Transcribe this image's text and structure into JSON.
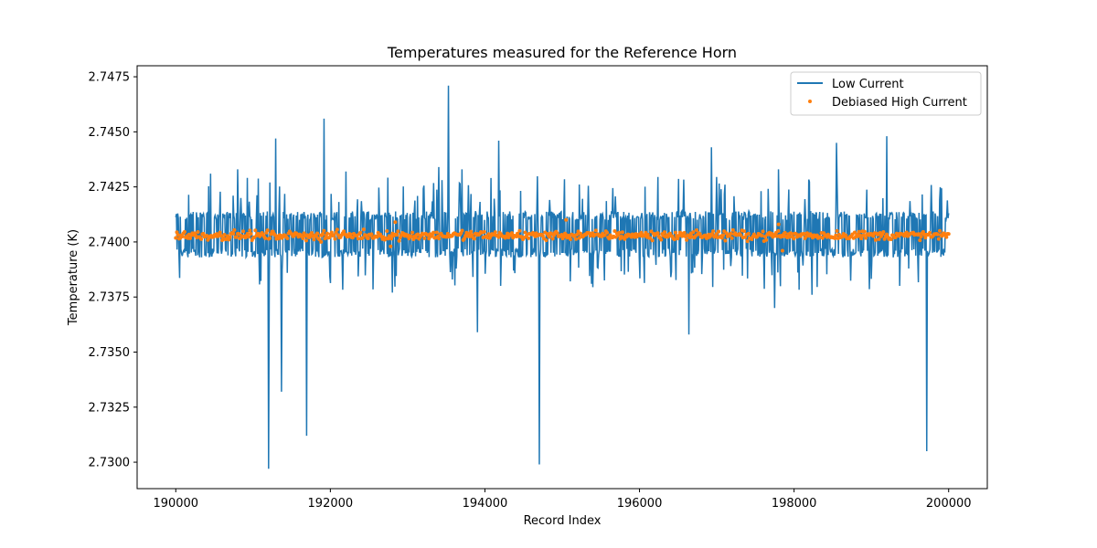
{
  "chart_data": {
    "type": "line",
    "title": "Temperatures measured for the Reference Horn",
    "xlabel": "Record Index",
    "ylabel": "Temperature (K)",
    "xlim": [
      189500,
      200500
    ],
    "ylim": [
      2.7288,
      2.748
    ],
    "xticks": [
      190000,
      192000,
      194000,
      196000,
      198000,
      200000
    ],
    "xtick_labels": [
      "190000",
      "192000",
      "194000",
      "196000",
      "198000",
      "200000"
    ],
    "yticks": [
      2.73,
      2.7325,
      2.735,
      2.7375,
      2.74,
      2.7425,
      2.745,
      2.7475
    ],
    "ytick_labels": [
      "2.7300",
      "2.7325",
      "2.7350",
      "2.7375",
      "2.7400",
      "2.7425",
      "2.7450",
      "2.7475"
    ],
    "grid": false,
    "legend_position": "upper-right",
    "series": [
      {
        "name": "Low Current",
        "kind": "line",
        "color": "#1f77b4",
        "x_range": [
          190000,
          200000
        ],
        "n_points": 1200,
        "band_low": 2.7395,
        "band_high": 2.7412,
        "spikes": [
          {
            "x": 191200,
            "y": 2.7297
          },
          {
            "x": 191290,
            "y": 2.7447
          },
          {
            "x": 191370,
            "y": 2.7332
          },
          {
            "x": 191690,
            "y": 2.7312
          },
          {
            "x": 191920,
            "y": 2.7456
          },
          {
            "x": 193530,
            "y": 2.7471
          },
          {
            "x": 193900,
            "y": 2.7359
          },
          {
            "x": 194180,
            "y": 2.7446
          },
          {
            "x": 194700,
            "y": 2.7299
          },
          {
            "x": 196640,
            "y": 2.7358
          },
          {
            "x": 196930,
            "y": 2.7443
          },
          {
            "x": 198550,
            "y": 2.7445
          },
          {
            "x": 199200,
            "y": 2.7448
          },
          {
            "x": 199720,
            "y": 2.7305
          },
          {
            "x": 190450,
            "y": 2.7431
          },
          {
            "x": 190800,
            "y": 2.7433
          },
          {
            "x": 192200,
            "y": 2.7432
          },
          {
            "x": 193400,
            "y": 2.7434
          },
          {
            "x": 193700,
            "y": 2.7433
          },
          {
            "x": 197800,
            "y": 2.7433
          },
          {
            "x": 197750,
            "y": 2.737
          },
          {
            "x": 198230,
            "y": 2.7376
          },
          {
            "x": 192800,
            "y": 2.7377
          }
        ]
      },
      {
        "name": "Debiased High Current",
        "kind": "scatter",
        "color": "#ff7f0e",
        "x_range": [
          190000,
          200000
        ],
        "n_points": 700,
        "center": 2.7403,
        "spread": 0.0003,
        "outliers": [
          {
            "x": 192780,
            "y": 2.7398
          },
          {
            "x": 195050,
            "y": 2.741
          },
          {
            "x": 197800,
            "y": 2.7408
          },
          {
            "x": 197850,
            "y": 2.7396
          },
          {
            "x": 191880,
            "y": 2.74
          },
          {
            "x": 192840,
            "y": 2.7409
          }
        ]
      }
    ]
  }
}
